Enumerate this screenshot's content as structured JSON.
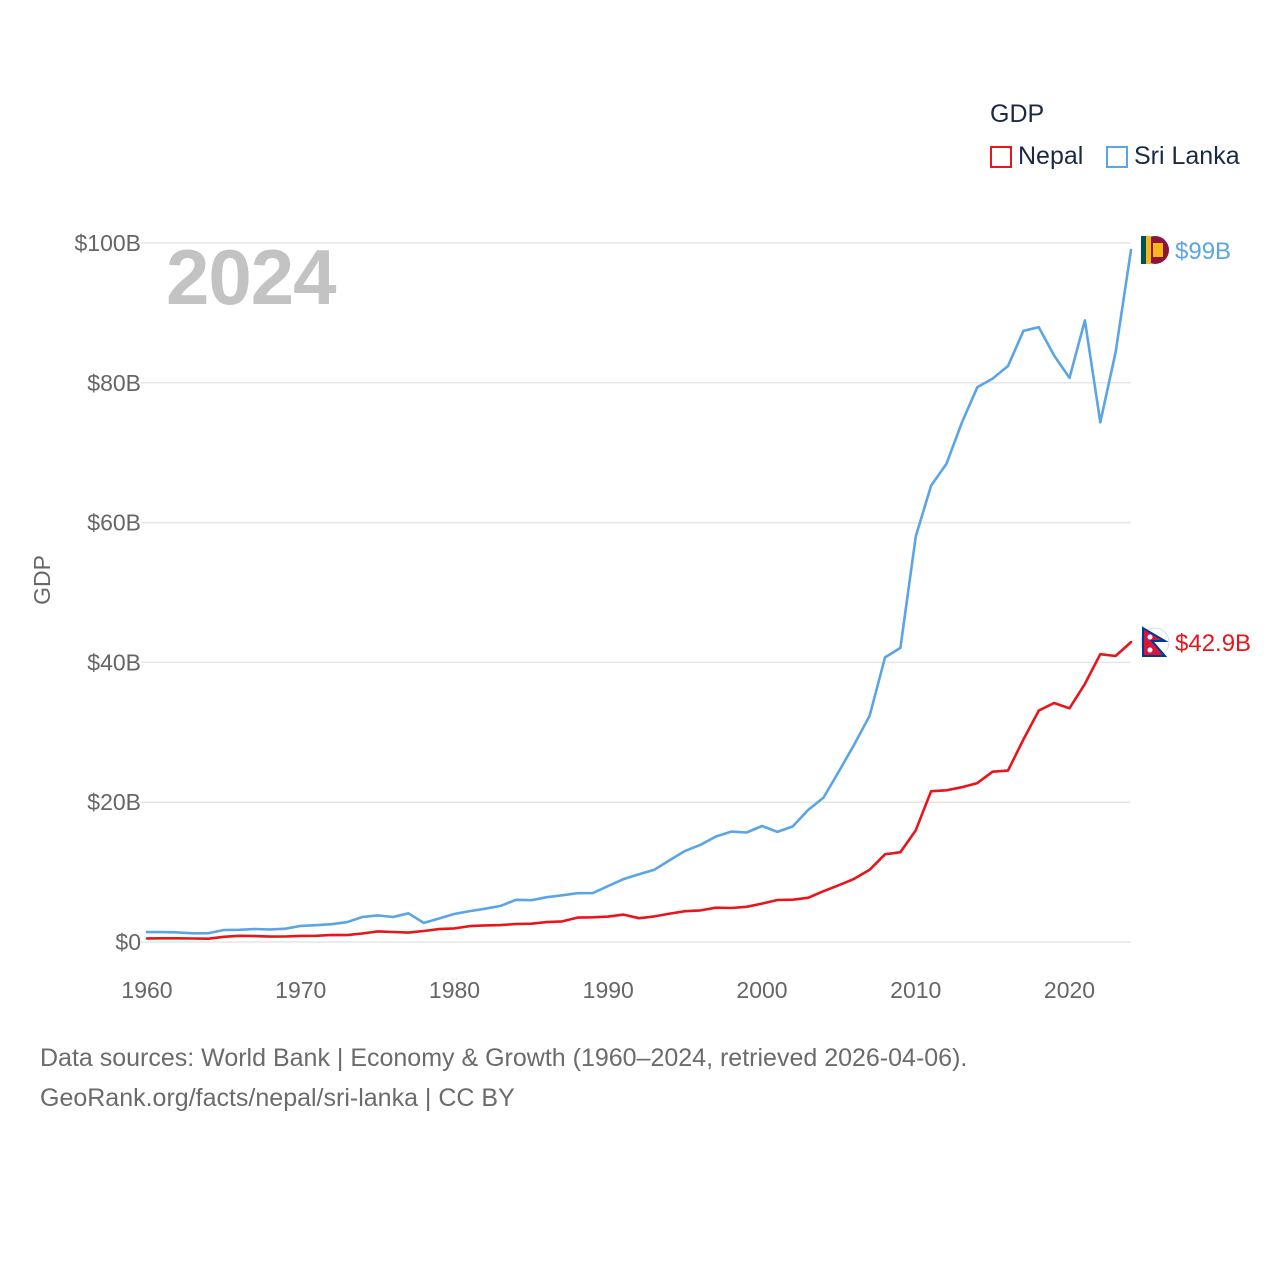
{
  "chart_data": {
    "type": "line",
    "ylabel": "GDP",
    "xlabel": "",
    "year_label": "2024",
    "legend_title": "GDP",
    "legend_position": "top-right",
    "grid": true,
    "xlim": [
      1960,
      2024
    ],
    "ylim": [
      0,
      100
    ],
    "y_unit": "billion USD",
    "x_ticks": [
      1960,
      1970,
      1980,
      1990,
      2000,
      2010,
      2020
    ],
    "x_tick_labels": [
      "1960",
      "1970",
      "1980",
      "1990",
      "2000",
      "2010",
      "2020"
    ],
    "y_ticks": [
      0,
      20,
      40,
      60,
      80,
      100
    ],
    "y_tick_labels": [
      "$0",
      "$20B",
      "$40B",
      "$60B",
      "$80B",
      "$100B"
    ],
    "x": [
      1960,
      1961,
      1962,
      1963,
      1964,
      1965,
      1966,
      1967,
      1968,
      1969,
      1970,
      1971,
      1972,
      1973,
      1974,
      1975,
      1976,
      1977,
      1978,
      1979,
      1980,
      1981,
      1982,
      1983,
      1984,
      1985,
      1986,
      1987,
      1988,
      1989,
      1990,
      1991,
      1992,
      1993,
      1994,
      1995,
      1996,
      1997,
      1998,
      1999,
      2000,
      2001,
      2002,
      2003,
      2004,
      2005,
      2006,
      2007,
      2008,
      2009,
      2010,
      2011,
      2012,
      2013,
      2014,
      2015,
      2016,
      2017,
      2018,
      2019,
      2020,
      2021,
      2022,
      2023,
      2024
    ],
    "series": [
      {
        "name": "Nepal",
        "color": "#e8151b",
        "end_label": "$42.9B",
        "flag_icon": "nepal-flag-icon",
        "values": [
          0.51,
          0.53,
          0.53,
          0.5,
          0.47,
          0.74,
          0.88,
          0.84,
          0.77,
          0.79,
          0.87,
          0.89,
          1.02,
          0.99,
          1.21,
          1.51,
          1.43,
          1.34,
          1.57,
          1.84,
          1.95,
          2.28,
          2.37,
          2.42,
          2.58,
          2.62,
          2.85,
          2.95,
          3.49,
          3.53,
          3.63,
          3.92,
          3.4,
          3.66,
          4.07,
          4.4,
          4.52,
          4.91,
          4.86,
          5.03,
          5.49,
          6.01,
          6.05,
          6.33,
          7.27,
          8.13,
          9.04,
          10.33,
          12.55,
          12.85,
          16.0,
          21.57,
          21.7,
          22.15,
          22.73,
          24.36,
          24.52,
          28.97,
          33.11,
          34.19,
          33.43,
          36.92,
          41.18,
          40.91,
          42.91
        ]
      },
      {
        "name": "Sri Lanka",
        "color": "#5ba4e5",
        "end_label": "$99B",
        "flag_icon": "sri-lanka-flag-icon",
        "values": [
          1.41,
          1.42,
          1.38,
          1.24,
          1.26,
          1.71,
          1.74,
          1.86,
          1.79,
          1.9,
          2.3,
          2.4,
          2.55,
          2.83,
          3.58,
          3.81,
          3.58,
          4.11,
          2.73,
          3.36,
          4.02,
          4.42,
          4.77,
          5.17,
          6.04,
          5.98,
          6.41,
          6.68,
          6.98,
          6.99,
          8.03,
          9.0,
          9.7,
          10.34,
          11.72,
          13.03,
          13.9,
          15.09,
          15.79,
          15.66,
          16.6,
          15.75,
          16.54,
          18.88,
          20.66,
          24.41,
          28.27,
          32.35,
          40.71,
          42.07,
          58.04,
          65.29,
          68.43,
          74.32,
          79.36,
          80.6,
          82.4,
          87.43,
          87.95,
          83.9,
          80.7,
          88.93,
          74.35,
          84.36,
          99.0
        ]
      }
    ]
  },
  "footer": {
    "line1": "Data sources: World Bank | Economy & Growth (1960–2024, retrieved 2026-04-06).",
    "line2": "GeoRank.org/facts/nepal/sri-lanka | CC BY"
  }
}
